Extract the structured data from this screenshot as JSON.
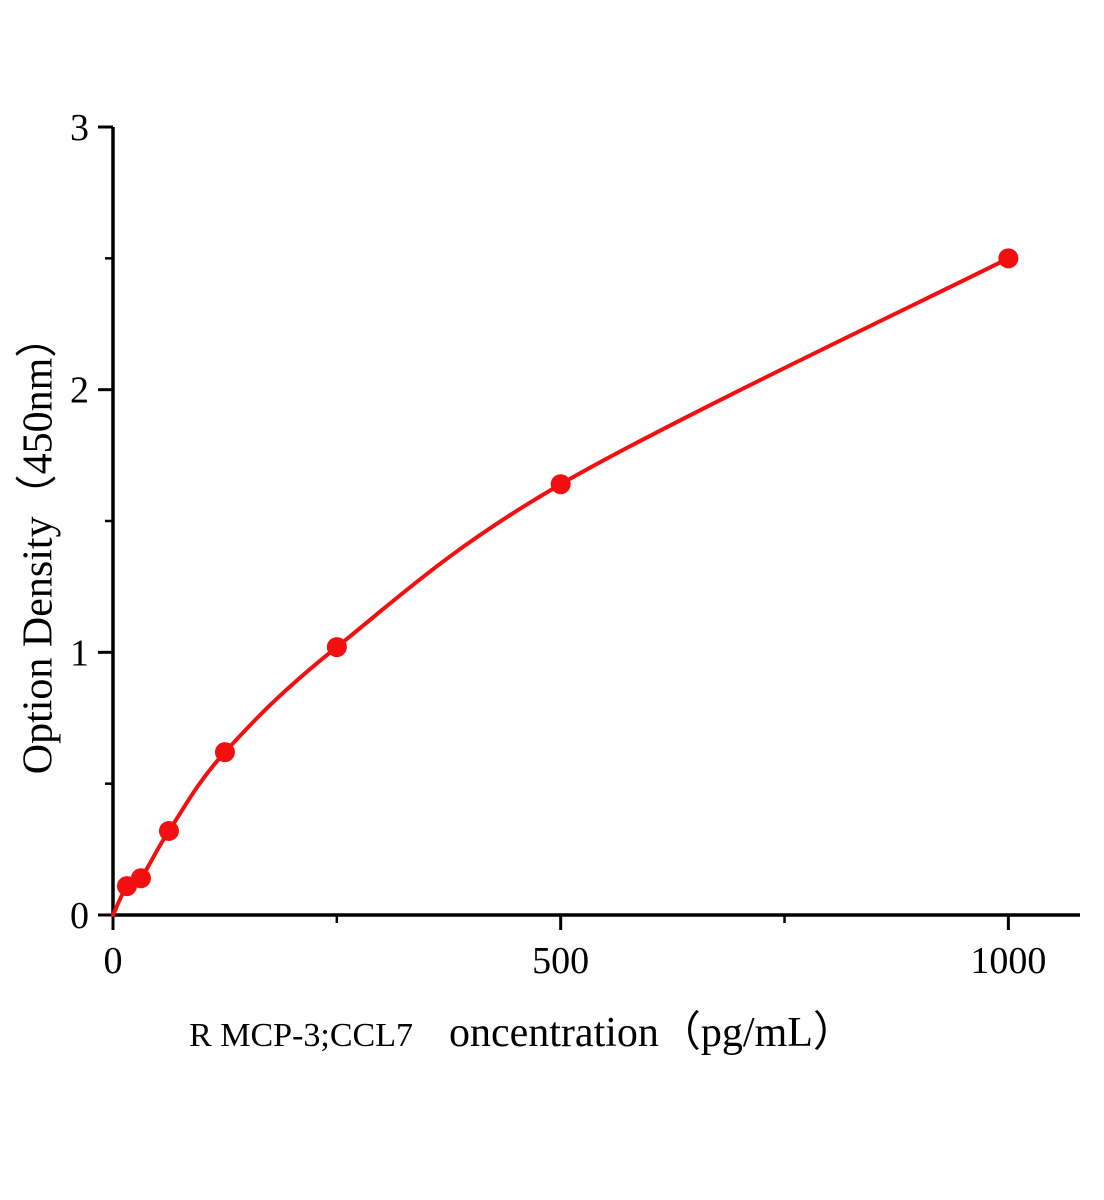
{
  "chart_data": {
    "type": "line",
    "markers": true,
    "title": "",
    "xlabel_prefix": "R MCP-3;CCL7",
    "xlabel_main": "oncentration（pg/mL）",
    "ylabel": "Option Density（450nm）",
    "x": [
      15.6,
      31.2,
      62.5,
      125,
      250,
      500,
      1000
    ],
    "y": [
      0.11,
      0.14,
      0.32,
      0.62,
      1.02,
      1.64,
      2.5
    ],
    "curve_origin": [
      0,
      0
    ],
    "xlim": [
      0,
      1080
    ],
    "ylim": [
      0,
      3
    ],
    "x_major_ticks": [
      0,
      500,
      1000
    ],
    "x_minor_ticks": [
      250,
      750
    ],
    "y_major_ticks": [
      0,
      1,
      2,
      3
    ],
    "y_minor_ticks": [
      0.5,
      1.5,
      2.5
    ],
    "grid": false,
    "legend": "none",
    "line_color": "#f30f0f",
    "marker_color": "#f30f0f",
    "axis_color": "#000000"
  }
}
